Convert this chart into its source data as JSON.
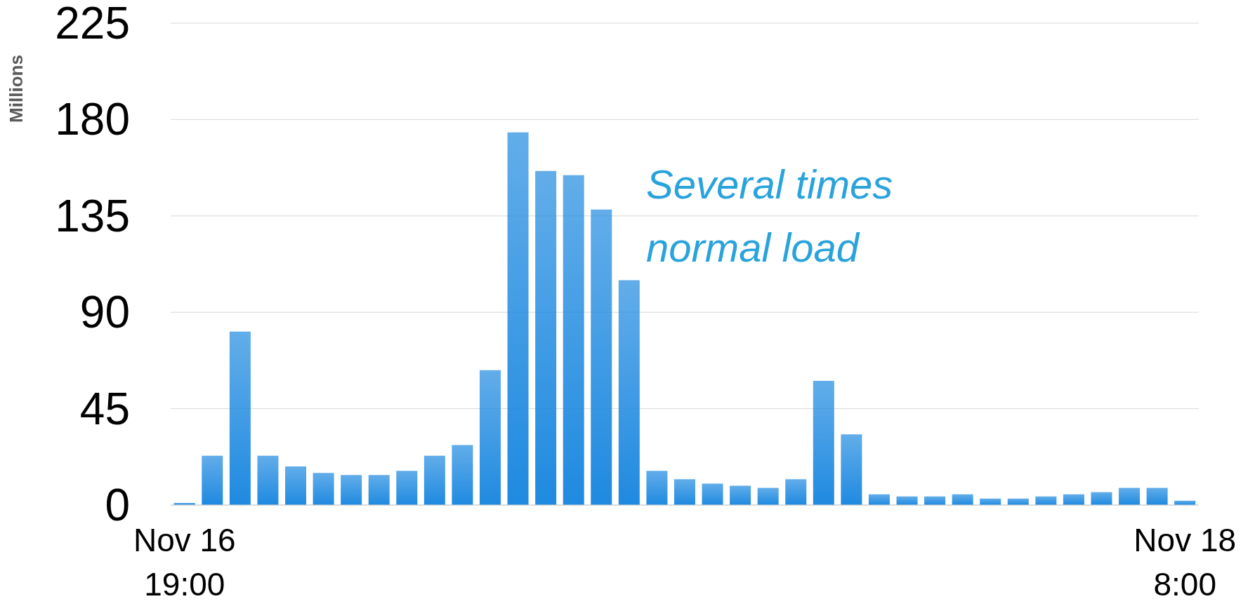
{
  "chart_data": {
    "type": "bar",
    "ylabel": "Millions",
    "annotations": [
      "Several times\nnormal load"
    ],
    "categories": [
      "Nov 16\n19:00",
      null,
      null,
      null,
      null,
      null,
      null,
      null,
      null,
      null,
      null,
      null,
      null,
      null,
      null,
      null,
      null,
      null,
      null,
      null,
      null,
      null,
      null,
      null,
      null,
      null,
      null,
      null,
      null,
      null,
      null,
      null,
      null,
      null,
      null,
      null,
      "Nov 18\n8:00"
    ],
    "values": [
      1,
      23,
      81,
      23,
      18,
      15,
      14,
      14,
      16,
      23,
      28,
      63,
      174,
      156,
      154,
      138,
      105,
      16,
      12,
      10,
      9,
      8,
      12,
      58,
      33,
      5,
      4,
      4,
      5,
      3,
      3,
      4,
      5,
      6,
      8,
      8,
      2
    ],
    "color": "#1f8ae0",
    "ylim": [
      0,
      225
    ],
    "yticks": [
      0,
      45,
      90,
      135,
      180,
      225
    ],
    "grid": "y"
  }
}
